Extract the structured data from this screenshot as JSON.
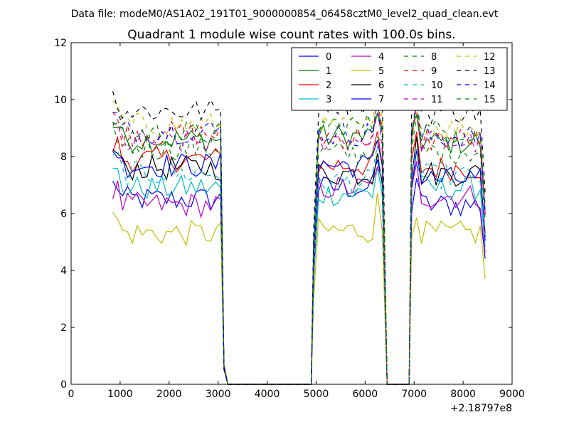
{
  "suptitle": "Data file: modeM0/AS1A02_191T01_9000000854_06458cztM0_level2_quad_clean.evt",
  "chart_data": {
    "type": "line",
    "title": "Quadrant 1 module wise count rates with 100.0s bins.",
    "xlabel": "",
    "ylabel": "",
    "x_offset_label": "+2.18797e8",
    "xlim": [
      0,
      9000
    ],
    "ylim": [
      0,
      12
    ],
    "xticks": [
      "0",
      "1000",
      "2000",
      "3000",
      "4000",
      "5000",
      "6000",
      "7000",
      "8000",
      "9000"
    ],
    "yticks": [
      "0",
      "2",
      "4",
      "6",
      "8",
      "10",
      "12"
    ],
    "legend_position": "top-right",
    "segments": [
      {
        "x_start": 850,
        "x_end": 3050
      },
      {
        "x_start": 4950,
        "x_end": 6350
      },
      {
        "x_start": 6950,
        "x_end": 8450
      }
    ],
    "gap_transitions": [
      {
        "x": [
          3050,
          3120,
          3200,
          4900,
          4950
        ]
      },
      {
        "x": [
          6350,
          6450,
          6900,
          6950
        ]
      }
    ],
    "series": [
      {
        "name": "0",
        "color": "#0000ff",
        "dash": false,
        "levels": [
          6.5,
          6.9,
          6.3
        ]
      },
      {
        "name": "1",
        "color": "#008000",
        "dash": false,
        "levels": [
          8.6,
          8.7,
          8.5
        ]
      },
      {
        "name": "2",
        "color": "#ff0000",
        "dash": false,
        "levels": [
          7.9,
          7.7,
          7.6
        ]
      },
      {
        "name": "3",
        "color": "#00bfbf",
        "dash": false,
        "levels": [
          6.9,
          6.7,
          6.9
        ]
      },
      {
        "name": "4",
        "color": "#bf00bf",
        "dash": false,
        "levels": [
          6.3,
          6.9,
          6.6
        ]
      },
      {
        "name": "5",
        "color": "#bfbf00",
        "dash": false,
        "levels": [
          5.3,
          5.4,
          5.3
        ]
      },
      {
        "name": "6",
        "color": "#000000",
        "dash": false,
        "levels": [
          7.6,
          7.4,
          7.4
        ]
      },
      {
        "name": "7",
        "color": "#0000ff",
        "dash": false,
        "levels": [
          7.7,
          7.7,
          7.2
        ]
      },
      {
        "name": "8",
        "color": "#008000",
        "dash": true,
        "levels": [
          8.3,
          8.1,
          8.2
        ]
      },
      {
        "name": "9",
        "color": "#ff0000",
        "dash": true,
        "levels": [
          8.8,
          8.7,
          8.6
        ]
      },
      {
        "name": "10",
        "color": "#00bfbf",
        "dash": true,
        "levels": [
          7.4,
          7.1,
          7.3
        ]
      },
      {
        "name": "11",
        "color": "#bf00bf",
        "dash": true,
        "levels": [
          8.5,
          8.6,
          8.5
        ]
      },
      {
        "name": "12",
        "color": "#bfbf00",
        "dash": true,
        "levels": [
          9.1,
          9.0,
          9.0
        ]
      },
      {
        "name": "13",
        "color": "#000000",
        "dash": true,
        "levels": [
          9.6,
          9.9,
          9.6
        ]
      },
      {
        "name": "14",
        "color": "#0000ff",
        "dash": true,
        "levels": [
          8.9,
          8.8,
          8.7
        ]
      },
      {
        "name": "15",
        "color": "#008000",
        "dash": true,
        "levels": [
          8.8,
          9.1,
          8.9
        ]
      }
    ]
  }
}
